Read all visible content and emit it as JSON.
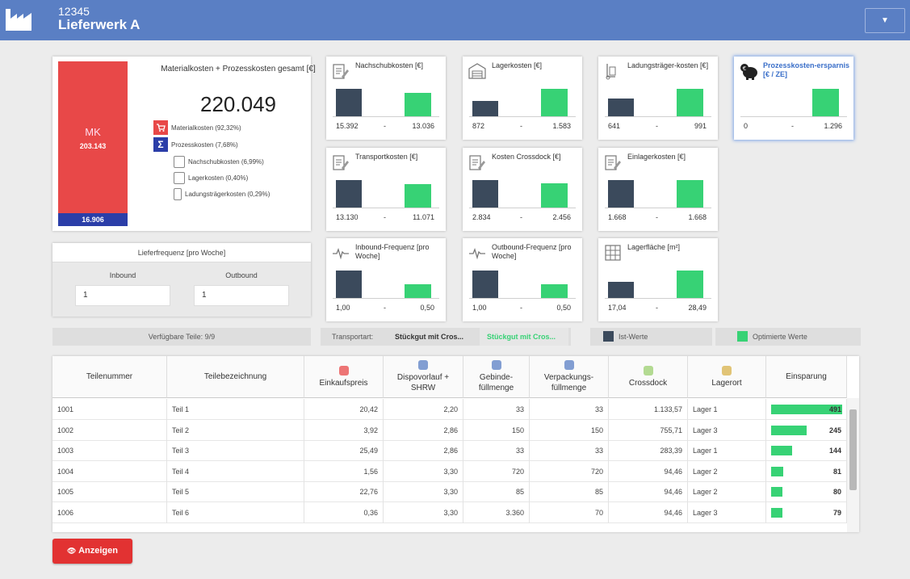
{
  "header": {
    "number": "12345",
    "name": "Lieferwerk A",
    "menu_icon": "▼",
    "color": "#5a7fc4"
  },
  "summary": {
    "title": "Materialkosten + Prozesskosten gesamt [€]",
    "total": "220.049",
    "mk_label": "MK",
    "mk_value": "203.143",
    "pk_value": "16.906",
    "legend": {
      "material": "Materialkosten (92,32%)",
      "prozess": "Prozesskosten (7,68%)",
      "nachschub": "Nachschubkosten (6,99%)",
      "lager": "Lagerkosten (0,40%)",
      "ladung": "Ladungsträgerkosten (0,29%)"
    },
    "colors": {
      "material": "#e84848",
      "prozess": "#2b3ea8"
    }
  },
  "cards": [
    {
      "title": "Nachschubkosten [€]",
      "icon": "form-edit-icon",
      "ist": "15.392",
      "opt": "13.036",
      "ist_h": 34,
      "opt_h": 29
    },
    {
      "title": "Lagerkosten [€]",
      "icon": "warehouse-icon",
      "ist": "872",
      "opt": "1.583",
      "ist_h": 19,
      "opt_h": 34
    },
    {
      "title": "Ladungsträger-kosten [€]",
      "icon": "hand-truck-icon",
      "ist": "641",
      "opt": "991",
      "ist_h": 22,
      "opt_h": 34
    },
    {
      "title": "Prozesskosten-ersparnis [€ / ZE]",
      "icon": "piggy-bank-icon",
      "ist": "0",
      "opt": "1.296",
      "ist_h": 0,
      "opt_h": 34
    },
    {
      "title": "Transportkosten [€]",
      "icon": "form-edit-icon",
      "ist": "13.130",
      "opt": "11.071",
      "ist_h": 34,
      "opt_h": 29
    },
    {
      "title": "Kosten Crossdock [€]",
      "icon": "form-edit-icon",
      "ist": "2.834",
      "opt": "2.456",
      "ist_h": 34,
      "opt_h": 30
    },
    {
      "title": "Einlagerkosten [€]",
      "icon": "form-edit-icon",
      "ist": "1.668",
      "opt": "1.668",
      "ist_h": 34,
      "opt_h": 34
    },
    {
      "title": "Inbound-Frequenz [pro Woche]",
      "icon": "pulse-icon",
      "ist": "1,00",
      "opt": "0,50",
      "ist_h": 34,
      "opt_h": 17
    },
    {
      "title": "Outbound-Frequenz [pro Woche]",
      "icon": "pulse-icon",
      "ist": "1,00",
      "opt": "0,50",
      "ist_h": 34,
      "opt_h": 17
    },
    {
      "title": "Lagerfläche [m²]",
      "icon": "grid-icon",
      "ist": "17,04",
      "opt": "28,49",
      "ist_h": 20,
      "opt_h": 34
    }
  ],
  "frequency": {
    "title": "Lieferfrequenz [pro Woche]",
    "inbound_label": "Inbound",
    "outbound_label": "Outbound",
    "inbound_value": "1",
    "outbound_value": "1"
  },
  "status": {
    "parts": "Verfügbare Teile: 9/9",
    "transport_label": "Transportart:",
    "transport_ist": "Stückgut mit Cros...",
    "transport_opt": "Stückgut mit Cros...",
    "legend_ist": "Ist-Werte",
    "legend_opt": "Optimierte Werte",
    "color_ist": "#3b4a5c",
    "color_opt": "#37d275"
  },
  "table": {
    "headers": [
      "Teilenummer",
      "Teilebezeichnung",
      "Einkaufspreis",
      "Dispovorlauf + SHRW",
      "Gebinde-füllmenge",
      "Verpackungs-füllmenge",
      "Crossdock",
      "Lagerort",
      "Einsparung"
    ],
    "rows": [
      {
        "nr": "1001",
        "name": "Teil 1",
        "preis": "20,42",
        "dispo": "2,20",
        "gebinde": "33",
        "verp": "33",
        "cross": "1.133,57",
        "lager": "Lager 1",
        "einsp": "491",
        "frac": 1.0
      },
      {
        "nr": "1002",
        "name": "Teil 2",
        "preis": "3,92",
        "dispo": "2,86",
        "gebinde": "150",
        "verp": "150",
        "cross": "755,71",
        "lager": "Lager 3",
        "einsp": "245",
        "frac": 0.5
      },
      {
        "nr": "1003",
        "name": "Teil 3",
        "preis": "25,49",
        "dispo": "2,86",
        "gebinde": "33",
        "verp": "33",
        "cross": "283,39",
        "lager": "Lager 1",
        "einsp": "144",
        "frac": 0.29
      },
      {
        "nr": "1004",
        "name": "Teil 4",
        "preis": "1,56",
        "dispo": "3,30",
        "gebinde": "720",
        "verp": "720",
        "cross": "94,46",
        "lager": "Lager 2",
        "einsp": "81",
        "frac": 0.165
      },
      {
        "nr": "1005",
        "name": "Teil 5",
        "preis": "22,76",
        "dispo": "3,30",
        "gebinde": "85",
        "verp": "85",
        "cross": "94,46",
        "lager": "Lager 2",
        "einsp": "80",
        "frac": 0.163
      },
      {
        "nr": "1006",
        "name": "Teil 6",
        "preis": "0,36",
        "dispo": "3,30",
        "gebinde": "3.360",
        "verp": "70",
        "cross": "94,46",
        "lager": "Lager 3",
        "einsp": "79",
        "frac": 0.161
      }
    ]
  },
  "buttons": {
    "show": "Anzeigen"
  }
}
